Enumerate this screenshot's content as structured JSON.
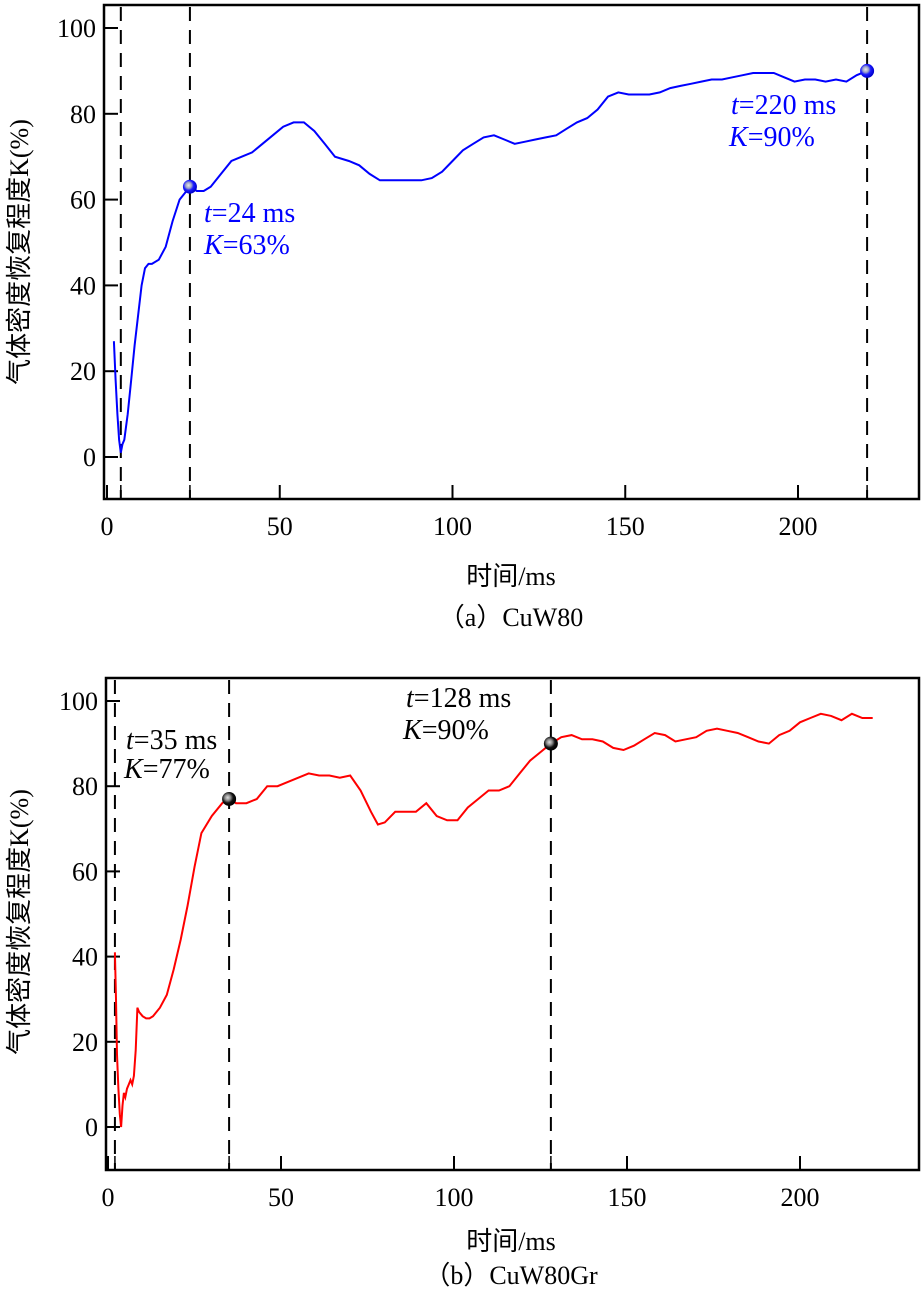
{
  "chart_data": [
    {
      "type": "line",
      "panel": "a",
      "title": "",
      "caption": "（a）CuW80",
      "xlabel": "时间/ms",
      "ylabel": "气体密度恢复程度K(%)",
      "xlim": [
        0,
        235
      ],
      "ylim": [
        -10,
        105
      ],
      "xticks": [
        0,
        50,
        100,
        150,
        200
      ],
      "yticks": [
        0,
        20,
        40,
        60,
        80,
        100
      ],
      "grid": false,
      "legend": null,
      "color": "#0000ff",
      "vlines": [
        4,
        24,
        220
      ],
      "series": [
        {
          "name": "CuW80",
          "x": [
            2,
            2.5,
            3,
            3.5,
            4,
            4.5,
            5,
            6,
            7,
            8,
            9,
            10,
            11,
            12,
            13,
            15,
            17,
            19,
            21,
            23,
            24,
            26,
            28,
            30,
            33,
            36,
            39,
            42,
            45,
            48,
            51,
            54,
            57,
            60,
            63,
            66,
            70,
            73,
            76,
            79,
            82,
            85,
            88,
            91,
            94,
            97,
            100,
            103,
            106,
            109,
            112,
            115,
            118,
            121,
            124,
            127,
            130,
            133,
            136,
            139,
            142,
            145,
            148,
            151,
            154,
            157,
            160,
            163,
            166,
            169,
            172,
            175,
            178,
            181,
            184,
            187,
            190,
            193,
            196,
            199,
            202,
            205,
            208,
            211,
            214,
            217,
            220
          ],
          "y": [
            27,
            18,
            10,
            4,
            1,
            3,
            4,
            10,
            18,
            26,
            33,
            40,
            44,
            45,
            45,
            46,
            49,
            55,
            60,
            62,
            63,
            62,
            62,
            63,
            66,
            69,
            70,
            71,
            73,
            75,
            77,
            78,
            78,
            76,
            73,
            70,
            69,
            68,
            66,
            64.5,
            64.5,
            64.5,
            64.5,
            64.5,
            65,
            66.5,
            69,
            71.5,
            73,
            74.5,
            75,
            74,
            73,
            73.5,
            74,
            74.5,
            75,
            76.5,
            78,
            79,
            81,
            84,
            85,
            84.5,
            84.5,
            84.5,
            85,
            86,
            86.5,
            87,
            87.5,
            88,
            88,
            88.5,
            89,
            89.5,
            89.5,
            89.5,
            88.5,
            87.5,
            88,
            88,
            87.5,
            88,
            87.5,
            89,
            90
          ]
        }
      ],
      "annotations": [
        {
          "x": 24,
          "y": 63,
          "text_t": "t=24 ms",
          "text_k": "K=63%"
        },
        {
          "x": 220,
          "y": 90,
          "text_t": "t=220 ms",
          "text_k": "K=90%"
        }
      ]
    },
    {
      "type": "line",
      "panel": "b",
      "title": "",
      "caption": "（b）CuW80Gr",
      "xlabel": "时间/ms",
      "ylabel": "气体密度恢复程度K(%)",
      "xlim": [
        0,
        235
      ],
      "ylim": [
        -10,
        105
      ],
      "xticks": [
        0,
        50,
        100,
        150,
        200
      ],
      "yticks": [
        0,
        20,
        40,
        60,
        80,
        100
      ],
      "grid": false,
      "legend": null,
      "color": "#ff0000",
      "vlines": [
        2,
        35,
        128
      ],
      "series": [
        {
          "name": "CuW80Gr",
          "x": [
            2,
            2.3,
            2.6,
            3,
            3.4,
            3.8,
            4.2,
            4.6,
            5,
            5.5,
            6,
            6.5,
            7,
            7.5,
            8,
            8.5,
            9,
            10,
            11,
            12,
            13,
            15,
            17,
            19,
            21,
            23,
            25,
            27,
            30,
            33,
            35,
            37,
            40,
            43,
            46,
            49,
            52,
            55,
            58,
            61,
            64,
            67,
            70,
            73,
            76,
            78,
            80,
            83,
            86,
            89,
            92,
            95,
            98,
            101,
            104,
            107,
            110,
            113,
            116,
            119,
            122,
            125,
            128,
            131,
            134,
            137,
            140,
            143,
            146,
            149,
            152,
            155,
            158,
            161,
            164,
            167,
            170,
            173,
            176,
            179,
            182,
            185,
            188,
            191,
            194,
            197,
            200,
            203,
            206,
            209,
            212,
            215,
            218,
            221
          ],
          "y": [
            41,
            30,
            17,
            9,
            3,
            0,
            5,
            8,
            7,
            9,
            10,
            11,
            10,
            12,
            18,
            28,
            27,
            26,
            25.5,
            25.5,
            26,
            28,
            31,
            37,
            44,
            52,
            61,
            69,
            73,
            76,
            77.5,
            76,
            76,
            77,
            80,
            80,
            81,
            82,
            83,
            82.5,
            82.5,
            82,
            82.5,
            79,
            74,
            71,
            71.5,
            74,
            74,
            74,
            76,
            73,
            72,
            72,
            75,
            77,
            79,
            79,
            80,
            83,
            86,
            88,
            90,
            91.5,
            92,
            91,
            91,
            90.5,
            89,
            88.5,
            89.5,
            91,
            92.5,
            92,
            90.5,
            91,
            91.5,
            93,
            93.5,
            93,
            92.5,
            91.5,
            90.5,
            90,
            92,
            93,
            95,
            96,
            97,
            96.5,
            95.5,
            97,
            96,
            96
          ]
        }
      ],
      "annotations": [
        {
          "x": 35,
          "y": 77,
          "text_t": "t=35 ms",
          "text_k": "K=77%"
        },
        {
          "x": 128,
          "y": 90,
          "text_t": "t=128 ms",
          "text_k": "K=90%"
        }
      ]
    }
  ],
  "panels": {
    "a": {
      "caption": "（a）CuW80",
      "xlabel": "时间/ms",
      "ylabel": "气体密度恢复程度K(%)",
      "annot1_t_var": "t",
      "annot1_t_rest": "=24 ms",
      "annot1_k_var": "K",
      "annot1_k_rest": "=63%",
      "annot2_t_var": "t",
      "annot2_t_rest": "=220 ms",
      "annot2_k_var": "K",
      "annot2_k_rest": "=90%",
      "xtick_labels": [
        "0",
        "50",
        "100",
        "150",
        "200"
      ],
      "ytick_labels": [
        "0",
        "20",
        "40",
        "60",
        "80",
        "100"
      ]
    },
    "b": {
      "caption": "（b）CuW80Gr",
      "xlabel": "时间/ms",
      "ylabel": "气体密度恢复程度K(%)",
      "annot1_t_var": "t",
      "annot1_t_rest": "=35 ms",
      "annot1_k_var": "K",
      "annot1_k_rest": "=77%",
      "annot2_t_var": "t",
      "annot2_t_rest": "=128 ms",
      "annot2_k_var": "K",
      "annot2_k_rest": "=90%",
      "xtick_labels": [
        "0",
        "50",
        "100",
        "150",
        "200"
      ],
      "ytick_labels": [
        "0",
        "20",
        "40",
        "60",
        "80",
        "100"
      ]
    }
  }
}
